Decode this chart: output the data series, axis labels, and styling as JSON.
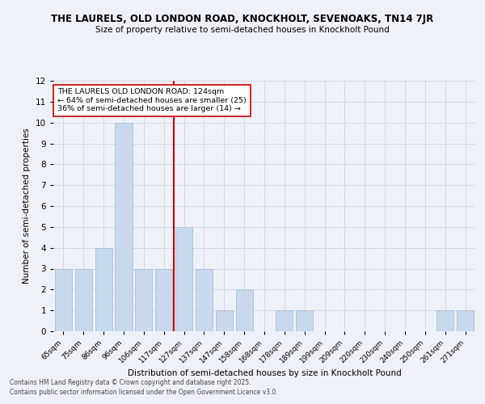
{
  "title": "THE LAURELS, OLD LONDON ROAD, KNOCKHOLT, SEVENOAKS, TN14 7JR",
  "subtitle": "Size of property relative to semi-detached houses in Knockholt Pound",
  "xlabel": "Distribution of semi-detached houses by size in Knockholt Pound",
  "ylabel": "Number of semi-detached properties",
  "categories": [
    "65sqm",
    "75sqm",
    "86sqm",
    "96sqm",
    "106sqm",
    "117sqm",
    "127sqm",
    "137sqm",
    "147sqm",
    "158sqm",
    "168sqm",
    "178sqm",
    "189sqm",
    "199sqm",
    "209sqm",
    "220sqm",
    "230sqm",
    "240sqm",
    "250sqm",
    "261sqm",
    "271sqm"
  ],
  "values": [
    3,
    3,
    4,
    10,
    3,
    3,
    5,
    3,
    1,
    2,
    0,
    1,
    1,
    0,
    0,
    0,
    0,
    0,
    0,
    1,
    1
  ],
  "bar_color": "#c8d9ed",
  "bar_edge_color": "#a0b8d0",
  "vline_x": 5.5,
  "vline_color": "#cc0000",
  "ylim": [
    0,
    12
  ],
  "yticks": [
    0,
    1,
    2,
    3,
    4,
    5,
    6,
    7,
    8,
    9,
    10,
    11,
    12
  ],
  "grid_color": "#d0d8e8",
  "bg_color": "#eef2f8",
  "annotation_title": "THE LAURELS OLD LONDON ROAD: 124sqm",
  "annotation_line1": "← 64% of semi-detached houses are smaller (25)",
  "annotation_line2": "36% of semi-detached houses are larger (14) →",
  "footer1": "Contains HM Land Registry data © Crown copyright and database right 2025.",
  "footer2": "Contains public sector information licensed under the Open Government Licence v3.0."
}
